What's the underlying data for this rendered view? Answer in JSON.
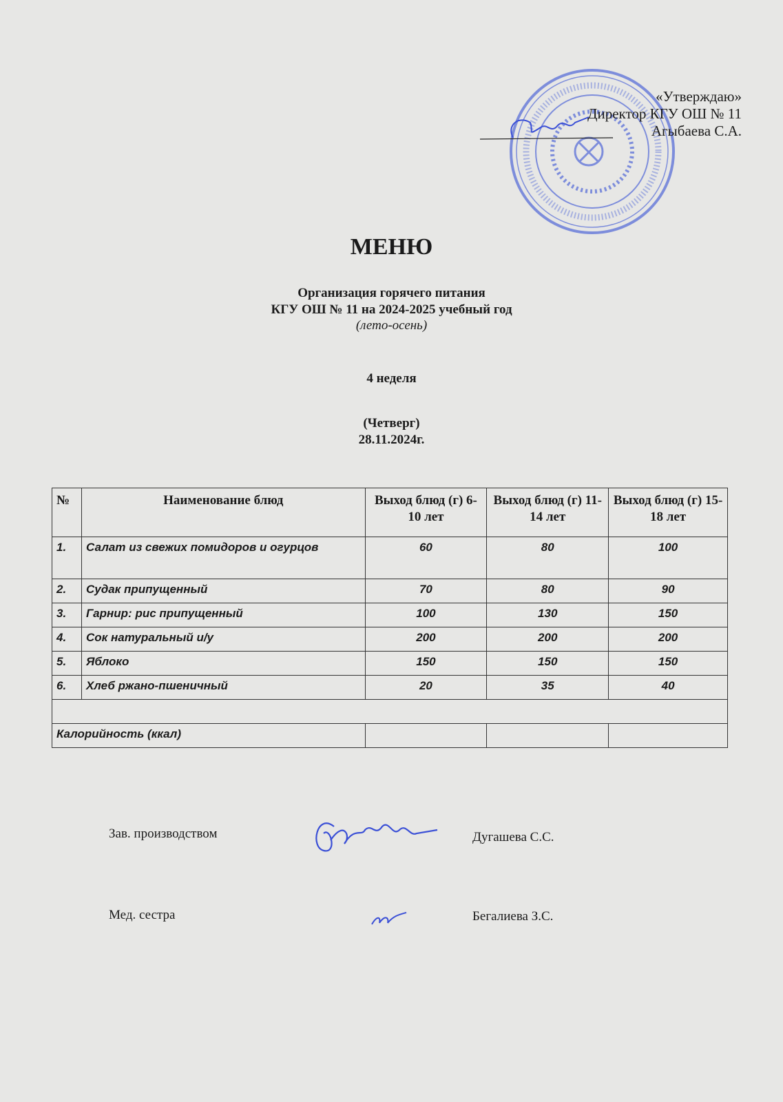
{
  "approval": {
    "line1": "«Утверждаю»",
    "line2": "Директор КГУ ОШ № 11",
    "line3": "Агыбаева С.А.",
    "stamp_color": "#4a5fd0"
  },
  "header": {
    "title": "МЕНЮ",
    "subtitle1": "Организация горячего питания",
    "subtitle2": "КГУ ОШ № 11 на 2024-2025 учебный год",
    "season": "(лето-осень)",
    "week": "4 неделя",
    "day": "(Четверг)",
    "date": "28.11.2024г."
  },
  "table": {
    "columns": [
      "№",
      "Наименование блюд",
      "Выход блюд (г) 6-10 лет",
      "Выход блюд (г) 11-14 лет",
      "Выход блюд (г) 15-18 лет"
    ],
    "rows": [
      {
        "n": "1.",
        "name": "Салат из свежих помидоров и огурцов",
        "a": "60",
        "b": "80",
        "c": "100"
      },
      {
        "n": "2.",
        "name": "Судак припущенный",
        "a": "70",
        "b": "80",
        "c": "90"
      },
      {
        "n": "3.",
        "name": "Гарнир: рис припущенный",
        "a": "100",
        "b": "130",
        "c": "150"
      },
      {
        "n": "4.",
        "name": "Сок натуральный и/у",
        "a": "200",
        "b": "200",
        "c": "200"
      },
      {
        "n": "5.",
        "name": "Яблоко",
        "a": "150",
        "b": "150",
        "c": "150"
      },
      {
        "n": "6.",
        "name": "Хлеб ржано-пшеничный",
        "a": "20",
        "b": "35",
        "c": "40"
      }
    ],
    "calories_label": "Калорийность (ккал)"
  },
  "signatures": [
    {
      "role": "Зав. производством",
      "name": "Дугашева С.С."
    },
    {
      "role": "Мед. сестра",
      "name": "Бегалиева З.С."
    }
  ],
  "ink_color": "#3a4fd6"
}
